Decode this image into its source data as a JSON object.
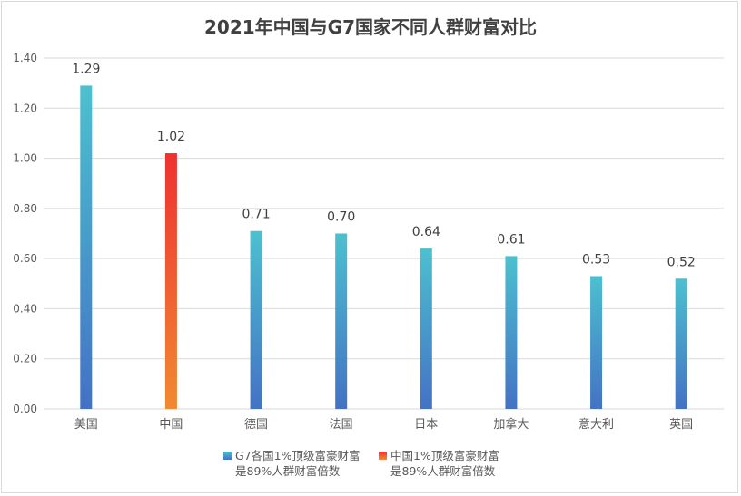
{
  "chart_data": {
    "type": "bar",
    "title": "2021年中国与G7国家不同人群财富对比",
    "categories": [
      "美国",
      "中国",
      "德国",
      "法国",
      "日本",
      "加拿大",
      "意大利",
      "英国"
    ],
    "series": [
      {
        "name": "G7各国1%顶级富豪财富是89%人群财富倍数",
        "values": [
          1.29,
          null,
          0.71,
          0.7,
          0.64,
          0.61,
          0.53,
          0.52
        ]
      },
      {
        "name": "中国1%顶级富豪财富是89%人群财富倍数",
        "values": [
          null,
          1.02,
          null,
          null,
          null,
          null,
          null,
          null
        ]
      }
    ],
    "data_labels": [
      "1.29",
      "1.02",
      "0.71",
      "0.70",
      "0.64",
      "0.61",
      "0.53",
      "0.52"
    ],
    "ylim": [
      0,
      1.4
    ],
    "yticks": [
      "0.00",
      "0.20",
      "0.40",
      "0.60",
      "0.80",
      "1.00",
      "1.20",
      "1.40"
    ],
    "xlabel": "",
    "ylabel": "",
    "grid": true,
    "legend_position": "bottom",
    "colors": {
      "g7_top": "#4cc0cf",
      "g7_bottom": "#4472c4",
      "china_top": "#ee3131",
      "china_bottom": "#f08a32",
      "grid": "#d9d9d9",
      "text": "#595959"
    }
  },
  "legend": {
    "g7_line1": "G7各国1%顶级富豪财富",
    "g7_line2": "是89%人群财富倍数",
    "china_line1": "中国1%顶级富豪财富",
    "china_line2": "是89%人群财富倍数"
  }
}
